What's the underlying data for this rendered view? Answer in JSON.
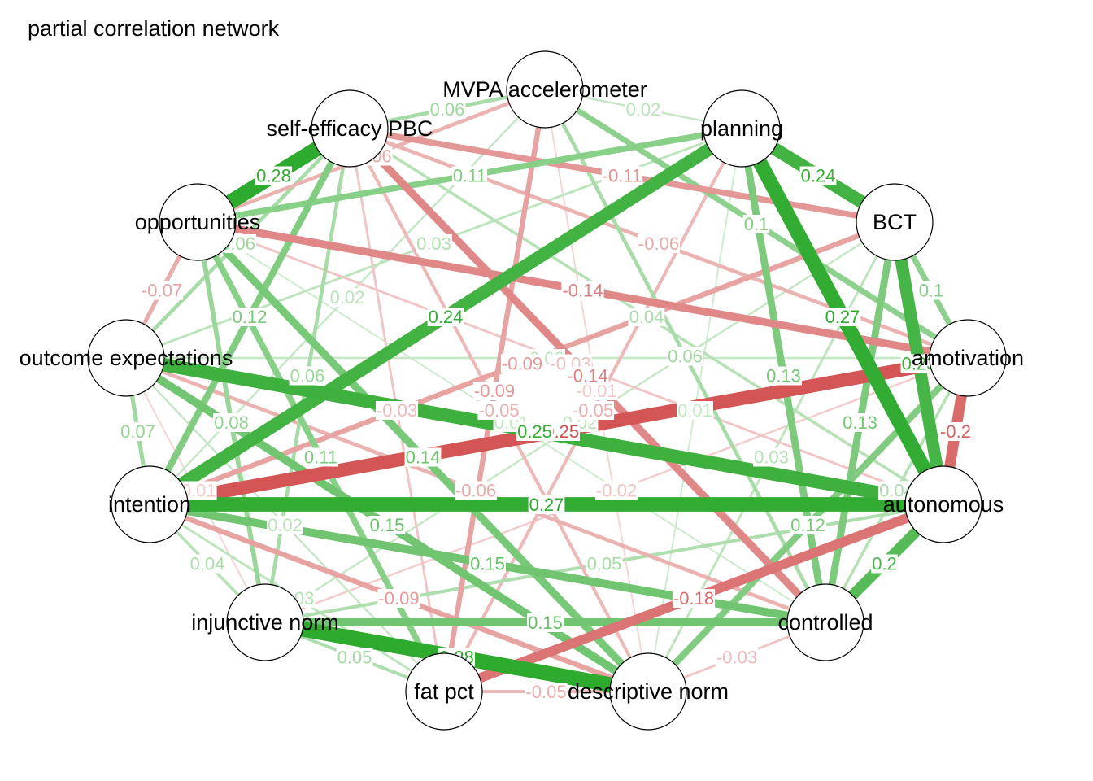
{
  "title": "partial correlation network",
  "colors": {
    "positive": "#2eaa2e",
    "negative": "#d04848",
    "node_fill": "#ffffff",
    "node_stroke": "#000000"
  },
  "nodes": [
    {
      "id": "mvpa",
      "label": "MVPA accelerometer"
    },
    {
      "id": "planning",
      "label": "planning"
    },
    {
      "id": "bct",
      "label": "BCT"
    },
    {
      "id": "amot",
      "label": "amotivation"
    },
    {
      "id": "auto",
      "label": "autonomous"
    },
    {
      "id": "ctrl",
      "label": "controlled"
    },
    {
      "id": "desc",
      "label": "descriptive norm"
    },
    {
      "id": "fat",
      "label": "fat pct"
    },
    {
      "id": "inj",
      "label": "injunctive norm"
    },
    {
      "id": "intent",
      "label": "intention"
    },
    {
      "id": "outexp",
      "label": "outcome expectations"
    },
    {
      "id": "opp",
      "label": "opportunities"
    },
    {
      "id": "se",
      "label": "self-efficacy PBC"
    }
  ],
  "edges": [
    {
      "source": "opp",
      "target": "se",
      "weight": 0.28,
      "label": "0.28"
    },
    {
      "source": "inj",
      "target": "desc",
      "weight": 0.28,
      "label": "0.28"
    },
    {
      "source": "planning",
      "target": "auto",
      "weight": 0.27,
      "label": "0.27"
    },
    {
      "source": "intent",
      "target": "auto",
      "weight": 0.27,
      "label": "0.27"
    },
    {
      "source": "intent",
      "target": "amot",
      "weight": -0.25,
      "label": "-0.25"
    },
    {
      "source": "outexp",
      "target": "auto",
      "weight": 0.25,
      "label": "0.25"
    },
    {
      "source": "planning",
      "target": "bct",
      "weight": 0.24,
      "label": "0.24"
    },
    {
      "source": "planning",
      "target": "intent",
      "weight": 0.24,
      "label": "0.24"
    },
    {
      "source": "bct",
      "target": "auto",
      "weight": 0.23,
      "label": "0.23"
    },
    {
      "source": "amot",
      "target": "auto",
      "weight": -0.2,
      "label": "-0.2"
    },
    {
      "source": "auto",
      "target": "ctrl",
      "weight": 0.2,
      "label": "0.2"
    },
    {
      "source": "auto",
      "target": "fat",
      "weight": -0.18,
      "label": "-0.18"
    },
    {
      "source": "intent",
      "target": "ctrl",
      "weight": 0.15,
      "label": "0.15"
    },
    {
      "source": "inj",
      "target": "ctrl",
      "weight": 0.15,
      "label": "0.15"
    },
    {
      "source": "outexp",
      "target": "desc",
      "weight": 0.15,
      "label": "0.15"
    },
    {
      "source": "opp",
      "target": "amot",
      "weight": -0.14,
      "label": "-0.14"
    },
    {
      "source": "se",
      "target": "ctrl",
      "weight": -0.14,
      "label": "-0.14"
    },
    {
      "source": "opp",
      "target": "desc",
      "weight": 0.14,
      "label": "0.14"
    },
    {
      "source": "planning",
      "target": "ctrl",
      "weight": 0.13,
      "label": "0.13"
    },
    {
      "source": "bct",
      "target": "ctrl",
      "weight": 0.13,
      "label": "0.13"
    },
    {
      "source": "intent",
      "target": "se",
      "weight": 0.12,
      "label": "0.12"
    },
    {
      "source": "amot",
      "target": "desc",
      "weight": 0.12,
      "label": "0.12"
    },
    {
      "source": "se",
      "target": "bct",
      "weight": -0.11,
      "label": "-0.11"
    },
    {
      "source": "opp",
      "target": "planning",
      "weight": 0.11,
      "label": "0.11"
    },
    {
      "source": "opp",
      "target": "fat",
      "weight": 0.11,
      "label": "0.11"
    },
    {
      "source": "mvpa",
      "target": "amot",
      "weight": 0.1,
      "label": "0.1"
    },
    {
      "source": "bct",
      "target": "amot",
      "weight": 0.1,
      "label": "0.1"
    },
    {
      "source": "opp",
      "target": "inj",
      "weight": 0.08,
      "label": "0.08"
    },
    {
      "source": "intent",
      "target": "bct",
      "weight": -0.09,
      "label": "-0.09"
    },
    {
      "source": "mvpa",
      "target": "fat",
      "weight": -0.09,
      "label": "-0.09"
    },
    {
      "source": "intent",
      "target": "desc",
      "weight": -0.09,
      "label": "-0.09"
    },
    {
      "source": "outexp",
      "target": "ctrl",
      "weight": -0.06,
      "label": "-0.06"
    },
    {
      "source": "outexp",
      "target": "opp",
      "weight": -0.07,
      "label": "-0.07"
    },
    {
      "source": "outexp",
      "target": "se",
      "weight": 0.06,
      "label": "0.06"
    },
    {
      "source": "inj",
      "target": "se",
      "weight": 0.06,
      "label": "0.06"
    },
    {
      "source": "inj",
      "target": "fat",
      "weight": 0.05,
      "label": "0.05"
    },
    {
      "source": "opp",
      "target": "mvpa",
      "weight": -0.06,
      "label": "-0.06"
    },
    {
      "source": "fat",
      "target": "desc",
      "weight": -0.05,
      "label": "-0.05"
    },
    {
      "source": "fat",
      "target": "planning",
      "weight": -0.05,
      "label": "-0.05"
    },
    {
      "source": "intent",
      "target": "outexp",
      "weight": 0.07,
      "label": "0.07"
    },
    {
      "source": "intent",
      "target": "inj",
      "weight": 0.04,
      "label": "0.04"
    },
    {
      "source": "desc",
      "target": "ctrl",
      "weight": -0.03,
      "label": "-0.03"
    },
    {
      "source": "outexp",
      "target": "inj",
      "weight": -0.01,
      "label": "-0.01"
    },
    {
      "source": "mvpa",
      "target": "planning",
      "weight": 0.02,
      "label": "0.02"
    },
    {
      "source": "outexp",
      "target": "amot",
      "weight": 0.02,
      "label": "0.02"
    },
    {
      "source": "se",
      "target": "mvpa",
      "weight": 0.06,
      "label": "0.06"
    },
    {
      "source": "outexp",
      "target": "planning",
      "weight": 0.03,
      "label": "0.03"
    },
    {
      "source": "desc",
      "target": "bct",
      "weight": 0.03,
      "label": "0.03"
    },
    {
      "source": "opp",
      "target": "auto",
      "weight": -0.03,
      "label": "-0.03"
    },
    {
      "source": "fat",
      "target": "se",
      "weight": -0.03,
      "label": "-0.03"
    },
    {
      "source": "inj",
      "target": "amot",
      "weight": -0.02,
      "label": "-0.02"
    },
    {
      "source": "intent",
      "target": "mvpa",
      "weight": 0.02,
      "label": "0.02"
    },
    {
      "source": "outexp",
      "target": "fat",
      "weight": 0.02,
      "label": "0.02"
    },
    {
      "source": "opp",
      "target": "ctrl",
      "weight": 0.01,
      "label": "0.01"
    },
    {
      "source": "mvpa",
      "target": "desc",
      "weight": -0.01,
      "label": "-0.01"
    },
    {
      "source": "inj",
      "target": "auto",
      "weight": 0.05,
      "label": "0.05"
    },
    {
      "source": "se",
      "target": "auto",
      "weight": 0.04,
      "label": "0.04"
    },
    {
      "source": "se",
      "target": "amot",
      "weight": -0.06,
      "label": "-0.06"
    },
    {
      "source": "desc",
      "target": "planning",
      "weight": 0.01,
      "label": "0.01"
    },
    {
      "source": "mvpa",
      "target": "ctrl",
      "weight": 0.06,
      "label": "0.06"
    },
    {
      "source": "intent",
      "target": "fat",
      "weight": 0.03,
      "label": "0.03"
    },
    {
      "source": "inj",
      "target": "bct",
      "weight": 0.02,
      "label": "0.02"
    },
    {
      "source": "ctrl",
      "target": "amot",
      "weight": 0.04,
      "label": "0.04"
    },
    {
      "source": "se",
      "target": "desc",
      "weight": -0.05,
      "label": "-0.05"
    }
  ]
}
